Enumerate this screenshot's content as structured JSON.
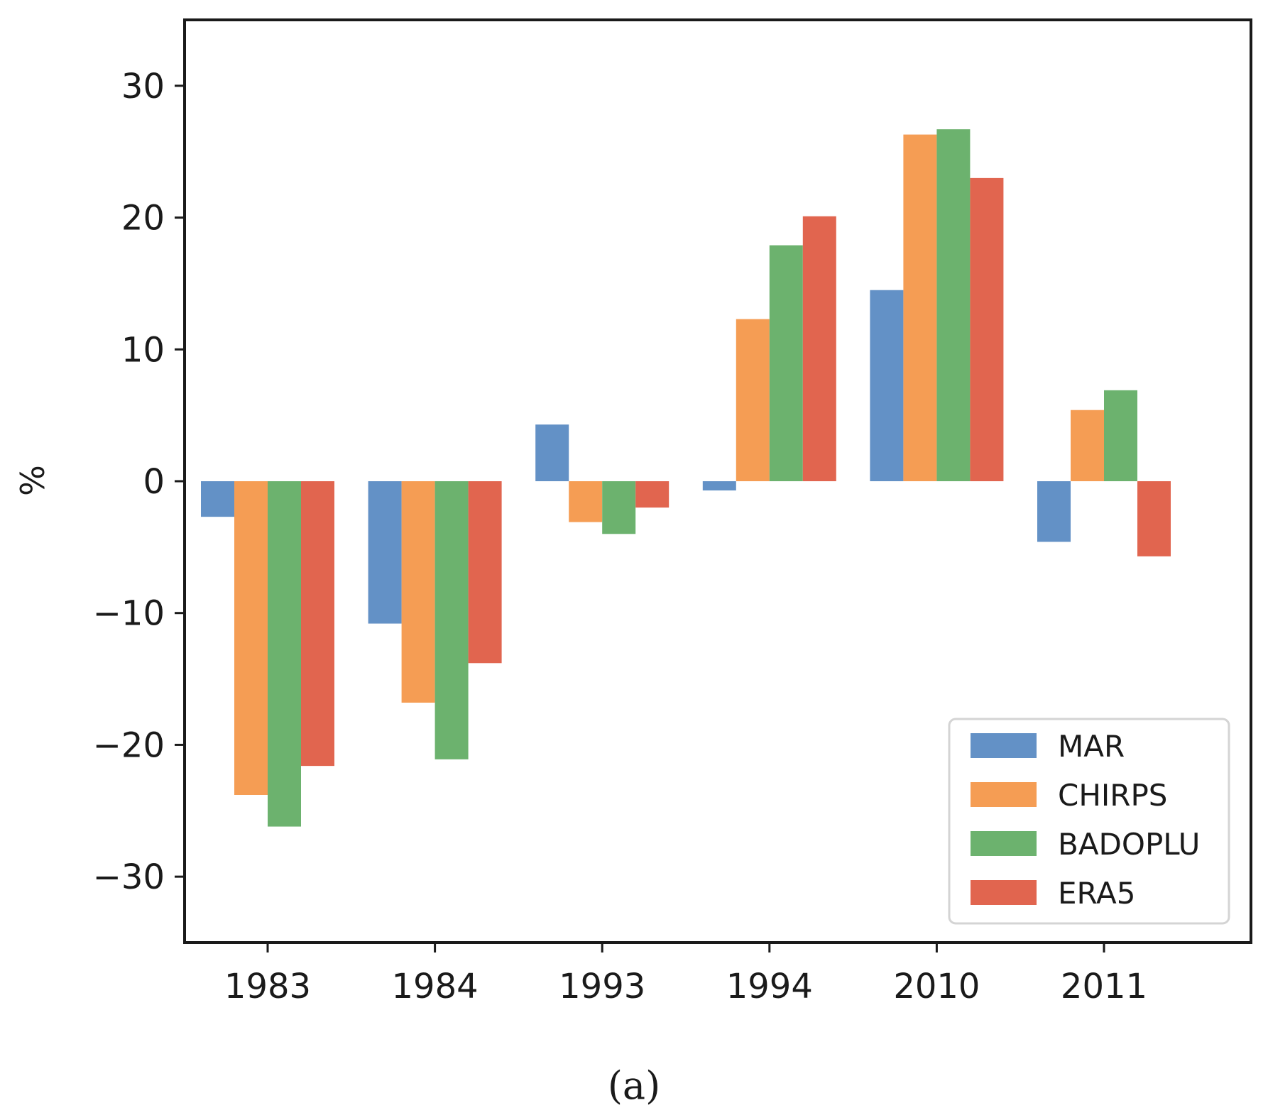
{
  "chart_data": {
    "type": "bar",
    "categories": [
      "1983",
      "1984",
      "1993",
      "1994",
      "2010",
      "2011"
    ],
    "series": [
      {
        "name": "MAR",
        "color": "#6391c6",
        "values": [
          -2.7,
          -10.8,
          4.3,
          -0.7,
          14.5,
          -4.6
        ]
      },
      {
        "name": "CHIRPS",
        "color": "#f59d54",
        "values": [
          -23.8,
          -16.8,
          -3.1,
          12.3,
          26.3,
          5.4
        ]
      },
      {
        "name": "BADOPLU",
        "color": "#6cb26e",
        "values": [
          -26.2,
          -21.1,
          -4.0,
          17.9,
          26.7,
          6.9
        ]
      },
      {
        "name": "ERA5",
        "color": "#e1654f",
        "values": [
          -21.6,
          -13.8,
          -2.0,
          20.1,
          23.0,
          -5.7
        ]
      }
    ],
    "ylabel": "%",
    "xlabel": "",
    "ylim": [
      -35,
      35
    ],
    "yticks": [
      30,
      20,
      10,
      0,
      -10,
      -20,
      -30
    ],
    "ytick_labels": [
      "30",
      "20",
      "10",
      "0",
      "−10",
      "−20",
      "−30"
    ],
    "legend_position": "lower-right",
    "grid": false
  },
  "caption": "(a)"
}
